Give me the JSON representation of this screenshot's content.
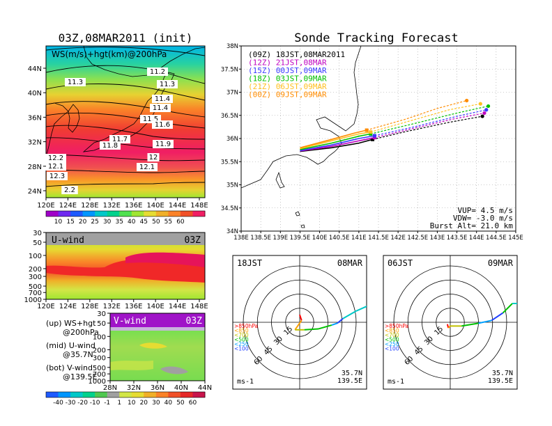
{
  "titles": {
    "left": "03Z,08MAR2011 (init)",
    "main": "Sonde Tracking Forecast"
  },
  "colors": {
    "lightred": "#ff6666",
    "contour": "#000000",
    "run_colors": [
      "#000000",
      "#c000c0",
      "#3a3aff",
      "#00c000",
      "#ffc020",
      "#ff8c00"
    ]
  },
  "upper_map": {
    "label": "WS(m/s)+hgt(km)@200hPa",
    "x_ticks": [
      "120E",
      "124E",
      "128E",
      "132E",
      "136E",
      "140E",
      "144E",
      "148E"
    ],
    "y_ticks": [
      "24N",
      "28N",
      "32N",
      "36N",
      "40N",
      "44N"
    ],
    "contour_labels": [
      "11.2",
      "11.3",
      "11.3",
      "11.4",
      "11.4",
      "11.5",
      "11.6",
      "11.7",
      "11.8",
      "11.9",
      "12",
      "12.1",
      "12.1",
      "12.2",
      "2",
      "2.2",
      "12.3"
    ],
    "colorbar": [
      "10",
      "15",
      "20",
      "25",
      "30",
      "35",
      "40",
      "45",
      "50",
      "55",
      "60"
    ],
    "colorbar_colors": [
      "#a000c8",
      "#6e28f0",
      "#1e5aff",
      "#0096ff",
      "#00c8c8",
      "#00d28c",
      "#50e150",
      "#a0e632",
      "#e6dc32",
      "#f0af28",
      "#fa8228",
      "#f05028",
      "#f01e64"
    ]
  },
  "u_wind": {
    "title": "U-wind",
    "time": "03Z",
    "y_ticks": [
      "30",
      "50",
      "100",
      "200",
      "300",
      "500",
      "700",
      "1000"
    ],
    "x_ticks": [
      "120E",
      "124E",
      "128E",
      "132E",
      "136E",
      "140E",
      "144E",
      "148E"
    ]
  },
  "v_wind": {
    "title": "V-wind",
    "time": "03Z",
    "y_ticks": [
      "30",
      "50",
      "100",
      "200",
      "300",
      "500",
      "700",
      "1000"
    ],
    "x_ticks": [
      "28N",
      "32N",
      "36N",
      "40N",
      "44N"
    ],
    "colorbar": [
      "-40",
      "-30",
      "-20",
      "-10",
      "-1",
      "1",
      "10",
      "20",
      "30",
      "40",
      "50",
      "60"
    ],
    "colorbar_colors": [
      "#1e5aff",
      "#0096ff",
      "#00c8c8",
      "#00d28c",
      "#50c850",
      "#a0a0a0",
      "#d2e646",
      "#e6dc32",
      "#f0af28",
      "#fa8228",
      "#f05028",
      "#e62828",
      "#c8144b"
    ]
  },
  "legend_notes": [
    {
      "label": "(up) WS+hgt",
      "sub": "@200hPa"
    },
    {
      "label": "(mid) U-wind",
      "sub": "@35.7N"
    },
    {
      "label": "(bot) V-wind",
      "sub": "@139.5E"
    }
  ],
  "track_map": {
    "x_ticks": [
      "138E",
      "138.5E",
      "139E",
      "139.5E",
      "140E",
      "140.5E",
      "141E",
      "141.5E",
      "142E",
      "142.5E",
      "143E",
      "143.5E",
      "144E",
      "144.5E",
      "145E"
    ],
    "y_ticks": [
      "34N",
      "34.5N",
      "35N",
      "35.5N",
      "36N",
      "36.5N",
      "37N",
      "37.5N",
      "38N"
    ],
    "runs": [
      {
        "label": "(09Z)  18JST,08MAR2011"
      },
      {
        "label": "(12Z)  21JST,08MAR"
      },
      {
        "label": "(15Z)  00JST,09MAR"
      },
      {
        "label": "(18Z)  03JST,09MAR"
      },
      {
        "label": "(21Z)  06JST,09MAR"
      },
      {
        "label": "(00Z)  09JST,09MAR"
      }
    ],
    "info": [
      "VUP= 4.5 m/s",
      "VDW= -3.0 m/s",
      "Burst Alt= 21.0 km"
    ]
  },
  "hodographs": [
    {
      "time": "18JST",
      "date": "08MAR",
      "lat": "35.7N",
      "lon": "139.5E",
      "units": "ms-1",
      "ring_labels": [
        "15",
        "30",
        "45",
        "60"
      ],
      "levels": [
        ">850hPa",
        "<850",
        "<700",
        "<500",
        "<250",
        "<100"
      ],
      "level_colors": [
        "#ff0000",
        "#ffa000",
        "#c0c000",
        "#00c000",
        "#00a0ff",
        "#2040ff"
      ]
    },
    {
      "time": "06JST",
      "date": "09MAR",
      "lat": "35.7N",
      "lon": "139.5E",
      "units": "ms-1",
      "ring_labels": [
        "15",
        "30",
        "45",
        "60"
      ],
      "levels": [
        ">850hPa",
        "<850",
        "<700",
        "<500",
        "<250",
        "<100"
      ],
      "level_colors": [
        "#ff0000",
        "#ffa000",
        "#c0c000",
        "#00c000",
        "#00a0ff",
        "#2040ff"
      ]
    }
  ],
  "chart_data": [
    {
      "type": "heatmap",
      "title": "WS(m/s)+hgt(km)@200hPa",
      "xlabel": "",
      "ylabel": "",
      "xlim": [
        120,
        150
      ],
      "ylim": [
        22,
        48
      ],
      "contour_values_km": [
        11.2,
        11.3,
        11.4,
        11.5,
        11.6,
        11.7,
        11.8,
        11.9,
        12.0,
        12.1,
        12.2,
        12.3
      ],
      "colorbar_ticks": [
        10,
        15,
        20,
        25,
        30,
        35,
        40,
        45,
        50,
        55,
        60
      ]
    },
    {
      "type": "heatmap",
      "title": "U-wind",
      "xlim": [
        120,
        150
      ],
      "pressure_levels_hPa": [
        30,
        50,
        100,
        200,
        300,
        500,
        700,
        1000
      ],
      "jet_core_hPa": 250
    },
    {
      "type": "heatmap",
      "title": "V-wind",
      "xlim": [
        28,
        44
      ],
      "pressure_levels_hPa": [
        30,
        50,
        100,
        200,
        300,
        500,
        700,
        1000
      ],
      "colorbar_ticks": [
        -40,
        -30,
        -20,
        -10,
        -1,
        1,
        10,
        20,
        30,
        40,
        50,
        60
      ]
    },
    {
      "type": "line",
      "title": "Sonde Tracking Forecast",
      "xlim": [
        138,
        145
      ],
      "ylim": [
        34,
        38
      ],
      "series": [
        {
          "name": "(09Z)  18JST,08MAR2011",
          "color": "#000000",
          "lon": [
            139.5,
            140.3,
            141.0,
            141.35,
            142.2,
            143.3,
            144.15
          ],
          "lat": [
            35.72,
            35.8,
            35.9,
            35.98,
            36.15,
            36.35,
            36.48
          ]
        },
        {
          "name": "(12Z)  21JST,08MAR",
          "color": "#c000c0",
          "lon": [
            139.5,
            140.3,
            141.0,
            141.4,
            142.3,
            143.4,
            144.2
          ],
          "lat": [
            35.73,
            35.83,
            35.95,
            36.02,
            36.2,
            36.42,
            36.55
          ]
        },
        {
          "name": "(15Z)  00JST,09MAR",
          "color": "#3a3aff",
          "lon": [
            139.5,
            140.3,
            141.0,
            141.4,
            142.4,
            143.5,
            144.25
          ],
          "lat": [
            35.74,
            35.86,
            36.0,
            36.06,
            36.25,
            36.48,
            36.62
          ]
        },
        {
          "name": "(18Z)  03JST,09MAR",
          "color": "#00c000",
          "lon": [
            139.5,
            140.3,
            141.0,
            141.3,
            142.3,
            143.5,
            144.3
          ],
          "lat": [
            35.76,
            35.9,
            36.05,
            36.1,
            36.3,
            36.55,
            36.7
          ]
        },
        {
          "name": "(21Z)  06JST,09MAR",
          "color": "#ffc020",
          "lon": [
            139.5,
            140.3,
            141.0,
            141.3,
            142.3,
            143.3,
            144.1
          ],
          "lat": [
            35.78,
            35.95,
            36.1,
            36.14,
            36.38,
            36.62,
            36.75
          ]
        },
        {
          "name": "(00Z)  09JST,09MAR",
          "color": "#ff8c00",
          "lon": [
            139.5,
            140.3,
            140.9,
            141.2,
            142.2,
            143.0,
            143.75
          ],
          "lat": [
            35.8,
            35.98,
            36.12,
            36.18,
            36.42,
            36.65,
            36.82
          ]
        }
      ]
    }
  ]
}
